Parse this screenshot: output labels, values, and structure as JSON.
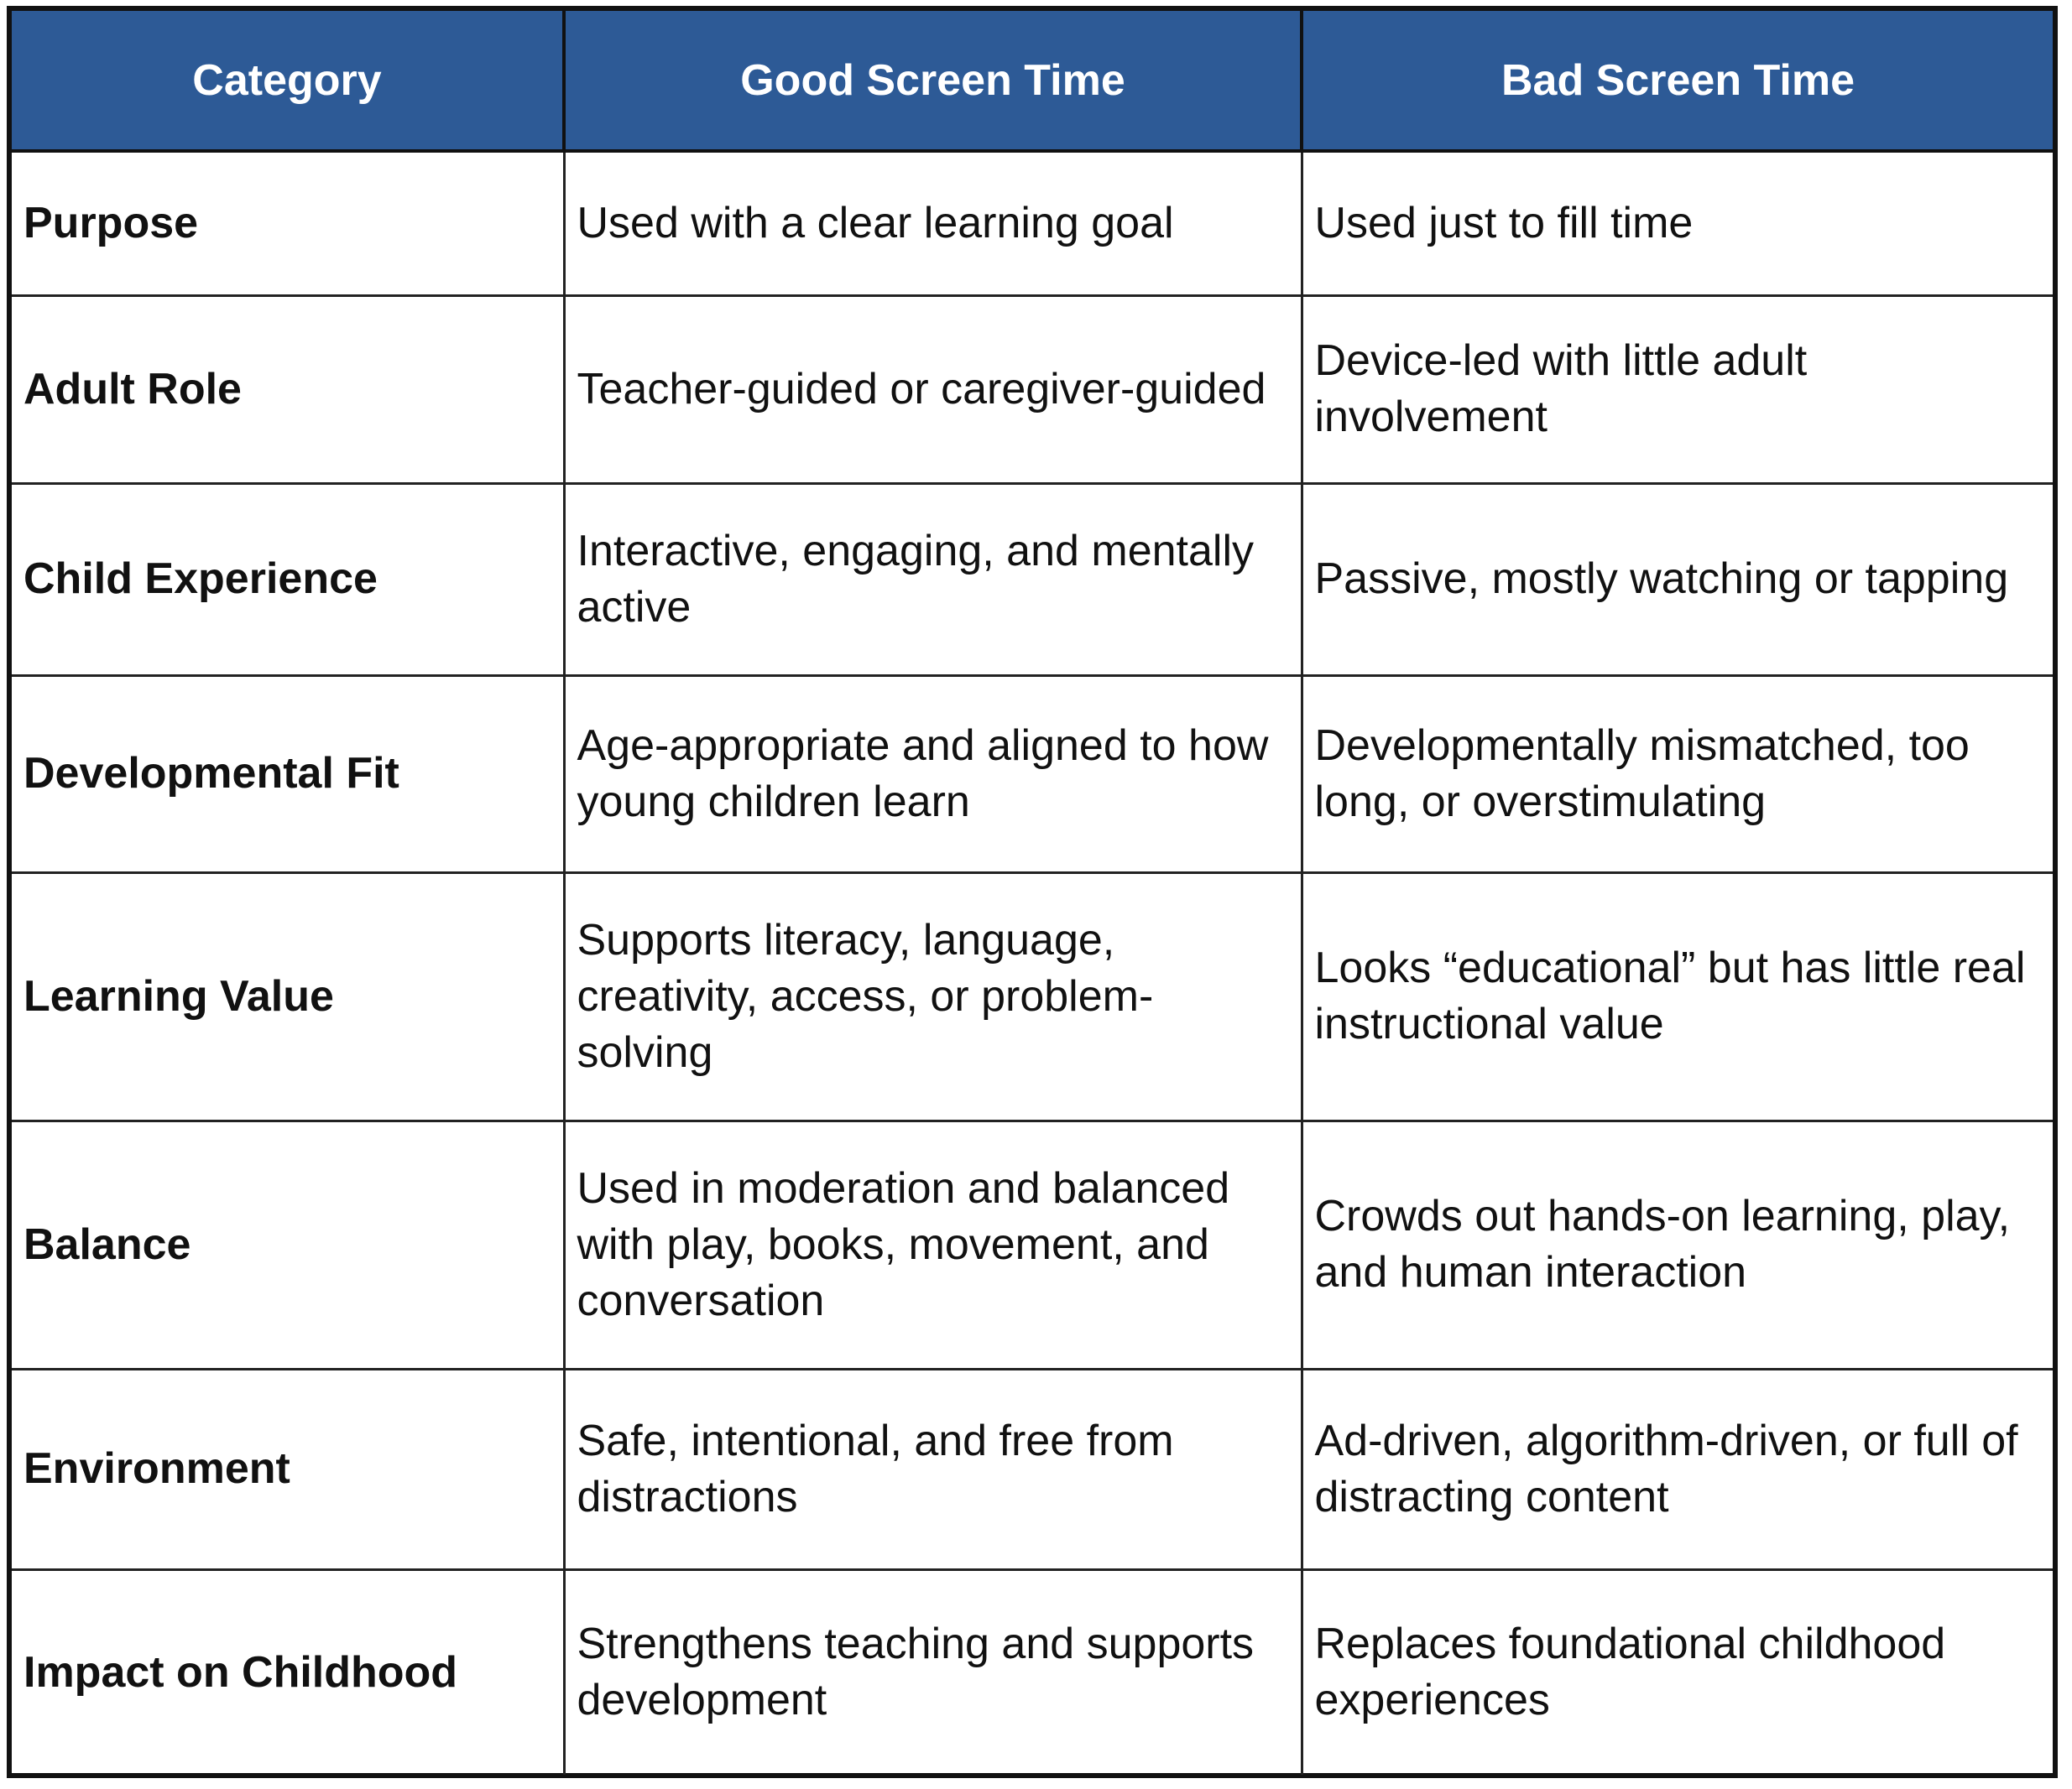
{
  "table": {
    "headers": [
      "Category",
      "Good Screen Time",
      "Bad Screen Time"
    ],
    "rows": [
      {
        "category": "Purpose",
        "good": "Used with a clear learning goal",
        "bad": "Used just to fill time"
      },
      {
        "category": "Adult Role",
        "good": "Teacher-guided or caregiver-guided",
        "bad": "Device-led with little adult involvement"
      },
      {
        "category": "Child Experience",
        "good": "Interactive, engaging, and mentally active",
        "bad": "Passive, mostly watching or tapping"
      },
      {
        "category": "Developmental Fit",
        "good": "Age-appropriate and aligned to how young children learn",
        "bad": "Developmentally mismatched, too long, or overstimulating"
      },
      {
        "category": "Learning Value",
        "good": "Supports literacy, language, creativity, access, or problem-solving",
        "bad": "Looks “educational” but has little real instructional value"
      },
      {
        "category": "Balance",
        "good": "Used in moderation and balanced with play, books, movement, and conversation",
        "bad": "Crowds out hands-on learning, play, and human interaction"
      },
      {
        "category": "Environment",
        "good": "Safe, intentional, and free from distractions",
        "bad": "Ad-driven, algorithm-driven, or full of distracting content"
      },
      {
        "category": "Impact on Childhood",
        "good": "Strengthens teaching and supports development",
        "bad": "Replaces foundational childhood experiences"
      }
    ]
  },
  "colors": {
    "header_background": "#2d5a96",
    "header_text": "#ffffff",
    "border": "#111111"
  }
}
